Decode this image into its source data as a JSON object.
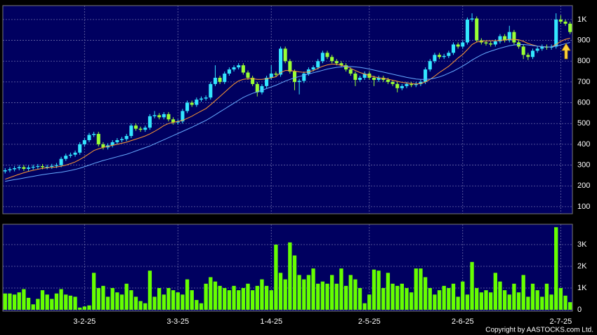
{
  "chart_data": [
    {
      "type": "candlestick",
      "up_color": "#33e6ff",
      "down_color": "#99ff33",
      "grid": true,
      "ylim": [
        66,
        1067
      ],
      "yticks": [
        100,
        200,
        300,
        400,
        500,
        600,
        700,
        800,
        900,
        {
          "value": 1000,
          "label": "1K"
        }
      ],
      "open": [
        270,
        275,
        280,
        285,
        290,
        282,
        288,
        292,
        295,
        290,
        292,
        296,
        300,
        330,
        345,
        350,
        360,
        400,
        420,
        445,
        450,
        400,
        385,
        395,
        410,
        420,
        425,
        440,
        490,
        475,
        470,
        480,
        535,
        540,
        530,
        545,
        520,
        505,
        510,
        560,
        600,
        590,
        615,
        620,
        625,
        690,
        720,
        700,
        740,
        760,
        770,
        780,
        745,
        720,
        690,
        650,
        680,
        720,
        740,
        735,
        860,
        800,
        750,
        700,
        705,
        740,
        760,
        770,
        800,
        840,
        820,
        800,
        790,
        780,
        760,
        740,
        710,
        720,
        740,
        720,
        710,
        720,
        710,
        700,
        690,
        670,
        680,
        690,
        685,
        690,
        700,
        760,
        800,
        830,
        820,
        825,
        840,
        880,
        870,
        890,
        1000,
        1005,
        900,
        890,
        885,
        880,
        895,
        920,
        900,
        940,
        890,
        870,
        830,
        820,
        850,
        860,
        870,
        865,
        870,
        1000,
        990,
        980
      ],
      "high": [
        285,
        290,
        295,
        300,
        300,
        298,
        302,
        305,
        305,
        302,
        306,
        310,
        340,
        355,
        360,
        370,
        410,
        430,
        455,
        460,
        460,
        410,
        405,
        420,
        430,
        435,
        450,
        500,
        500,
        485,
        490,
        545,
        560,
        550,
        555,
        555,
        530,
        520,
        570,
        610,
        610,
        625,
        630,
        635,
        700,
        780,
        730,
        750,
        770,
        780,
        790,
        790,
        755,
        730,
        700,
        690,
        730,
        780,
        750,
        870,
        870,
        810,
        760,
        715,
        750,
        770,
        780,
        810,
        850,
        850,
        830,
        810,
        800,
        790,
        770,
        750,
        730,
        750,
        750,
        730,
        730,
        730,
        720,
        710,
        700,
        690,
        700,
        700,
        700,
        710,
        770,
        810,
        840,
        840,
        835,
        850,
        890,
        890,
        900,
        1010,
        1030,
        1015,
        910,
        900,
        895,
        905,
        930,
        930,
        970,
        950,
        900,
        880,
        840,
        860,
        870,
        880,
        880,
        880,
        1030,
        1020,
        1000,
        990
      ],
      "low": [
        260,
        265,
        270,
        275,
        272,
        272,
        278,
        282,
        280,
        280,
        282,
        286,
        290,
        320,
        335,
        340,
        350,
        390,
        410,
        435,
        390,
        375,
        375,
        385,
        400,
        410,
        415,
        430,
        465,
        460,
        460,
        470,
        525,
        520,
        520,
        510,
        495,
        495,
        500,
        550,
        580,
        580,
        605,
        610,
        615,
        680,
        690,
        690,
        730,
        750,
        760,
        735,
        710,
        680,
        630,
        640,
        670,
        710,
        725,
        725,
        790,
        740,
        660,
        640,
        695,
        730,
        750,
        760,
        790,
        810,
        790,
        780,
        770,
        750,
        730,
        680,
        700,
        710,
        710,
        680,
        700,
        700,
        690,
        680,
        650,
        660,
        670,
        675,
        675,
        680,
        690,
        750,
        790,
        810,
        810,
        815,
        830,
        860,
        860,
        880,
        990,
        890,
        880,
        875,
        870,
        870,
        885,
        890,
        890,
        880,
        860,
        810,
        805,
        810,
        840,
        850,
        855,
        855,
        860,
        980,
        970,
        930
      ],
      "close": [
        275,
        280,
        285,
        290,
        282,
        288,
        292,
        295,
        290,
        292,
        296,
        300,
        330,
        345,
        350,
        360,
        400,
        420,
        445,
        450,
        400,
        385,
        395,
        410,
        420,
        425,
        440,
        490,
        475,
        470,
        480,
        535,
        540,
        530,
        545,
        520,
        505,
        510,
        560,
        600,
        590,
        615,
        620,
        625,
        690,
        720,
        700,
        740,
        760,
        770,
        780,
        745,
        720,
        690,
        650,
        680,
        720,
        740,
        735,
        860,
        800,
        750,
        700,
        705,
        740,
        760,
        770,
        800,
        840,
        820,
        800,
        790,
        780,
        760,
        740,
        710,
        720,
        740,
        720,
        710,
        720,
        710,
        700,
        690,
        670,
        680,
        690,
        685,
        690,
        700,
        760,
        800,
        830,
        820,
        825,
        840,
        880,
        870,
        890,
        1000,
        1005,
        900,
        890,
        885,
        880,
        895,
        920,
        900,
        940,
        890,
        870,
        830,
        820,
        850,
        860,
        870,
        865,
        870,
        1000,
        990,
        980,
        940
      ],
      "series": [
        {
          "color": "#ff9933",
          "values": [
            232,
            240,
            248,
            256,
            263,
            270,
            275,
            280,
            284,
            287,
            289,
            291,
            295,
            300,
            307,
            315,
            327,
            340,
            355,
            370,
            378,
            385,
            390,
            395,
            400,
            405,
            410,
            418,
            425,
            432,
            440,
            450,
            462,
            475,
            490,
            500,
            506,
            510,
            515,
            525,
            535,
            548,
            560,
            572,
            590,
            610,
            630,
            650,
            670,
            690,
            705,
            712,
            715,
            715,
            712,
            712,
            715,
            720,
            725,
            745,
            755,
            755,
            752,
            748,
            746,
            748,
            755,
            765,
            775,
            782,
            786,
            785,
            780,
            775,
            765,
            755,
            745,
            738,
            730,
            725,
            720,
            717,
            713,
            708,
            703,
            698,
            695,
            692,
            690,
            692,
            700,
            712,
            728,
            745,
            760,
            775,
            795,
            815,
            832,
            855,
            880,
            892,
            895,
            897,
            898,
            898,
            900,
            902,
            905,
            905,
            903,
            895,
            885,
            878,
            872,
            870,
            868,
            868,
            880,
            895,
            905,
            910
          ]
        },
        {
          "color": "#66aaff",
          "values": [
            222,
            226,
            230,
            234,
            238,
            242,
            246,
            250,
            254,
            257,
            260,
            263,
            266,
            270,
            274,
            279,
            285,
            292,
            300,
            308,
            315,
            322,
            328,
            334,
            340,
            346,
            352,
            360,
            368,
            376,
            384,
            392,
            402,
            412,
            422,
            432,
            442,
            452,
            462,
            472,
            482,
            493,
            504,
            515,
            528,
            542,
            556,
            570,
            584,
            598,
            612,
            625,
            636,
            645,
            652,
            660,
            668,
            676,
            684,
            694,
            704,
            712,
            720,
            726,
            732,
            738,
            744,
            750,
            756,
            762,
            766,
            770,
            772,
            774,
            774,
            772,
            770,
            766,
            762,
            757,
            752,
            747,
            742,
            737,
            732,
            727,
            722,
            718,
            714,
            712,
            712,
            714,
            718,
            724,
            732,
            742,
            752,
            764,
            776,
            790,
            805,
            818,
            830,
            840,
            848,
            855,
            862,
            868,
            874,
            878,
            880,
            880,
            878,
            875,
            872,
            870,
            868,
            868,
            872,
            878,
            884,
            890
          ]
        }
      ]
    },
    {
      "type": "bar",
      "color": "#66ff00",
      "grid": true,
      "ylim": [
        0,
        3935
      ],
      "yticks": [
        0,
        {
          "value": 1000,
          "label": "1K"
        },
        {
          "value": 2000,
          "label": "2K"
        },
        {
          "value": 3000,
          "label": "3K"
        }
      ],
      "categories": [
        null,
        null,
        null,
        null,
        null,
        null,
        null,
        null,
        null,
        null,
        null,
        null,
        null,
        null,
        null,
        null,
        null,
        "3-2-25",
        null,
        null,
        null,
        null,
        null,
        null,
        null,
        null,
        null,
        null,
        null,
        null,
        null,
        null,
        null,
        null,
        null,
        null,
        null,
        "3-3-25",
        null,
        null,
        null,
        null,
        null,
        null,
        null,
        null,
        null,
        null,
        null,
        null,
        null,
        null,
        null,
        null,
        null,
        null,
        null,
        "1-4-25",
        null,
        null,
        null,
        null,
        null,
        null,
        null,
        null,
        null,
        null,
        null,
        null,
        null,
        null,
        null,
        null,
        null,
        null,
        null,
        null,
        "2-5-25",
        null,
        null,
        null,
        null,
        null,
        null,
        null,
        null,
        null,
        null,
        null,
        null,
        null,
        null,
        null,
        null,
        null,
        null,
        null,
        "2-6-25",
        null,
        null,
        null,
        null,
        null,
        null,
        null,
        null,
        null,
        null,
        null,
        null,
        null,
        null,
        null,
        null,
        null,
        null,
        null,
        null,
        "2-7-25",
        null,
        null
      ],
      "values": [
        750,
        750,
        700,
        800,
        950,
        550,
        250,
        500,
        900,
        700,
        500,
        750,
        950,
        700,
        650,
        600,
        100,
        150,
        200,
        1700,
        1000,
        1100,
        600,
        1000,
        800,
        700,
        1200,
        900,
        600,
        400,
        300,
        1800,
        600,
        1000,
        700,
        1000,
        900,
        800,
        700,
        1400,
        900,
        450,
        300,
        1200,
        1500,
        1300,
        1100,
        1000,
        900,
        1100,
        900,
        1000,
        1200,
        900,
        1100,
        1400,
        1100,
        900,
        3000,
        1700,
        1400,
        3100,
        2500,
        1600,
        1400,
        1600,
        1900,
        1200,
        1300,
        1200,
        1600,
        1200,
        1900,
        1100,
        1600,
        1400,
        1000,
        300,
        700,
        1850,
        1800,
        1000,
        1700,
        1200,
        1100,
        1200,
        1000,
        800,
        1900,
        1900,
        1500,
        1000,
        700,
        900,
        1100,
        1000,
        1200,
        600,
        1300,
        700,
        2200,
        1000,
        800,
        900,
        800,
        1700,
        1300,
        900,
        700,
        1200,
        800,
        1600,
        600,
        1200,
        900,
        600,
        1200,
        700,
        3800,
        1000,
        650,
        350
      ]
    },
    {
      "copyright": "Copyright by AASTOCKS.com Ltd."
    }
  ]
}
